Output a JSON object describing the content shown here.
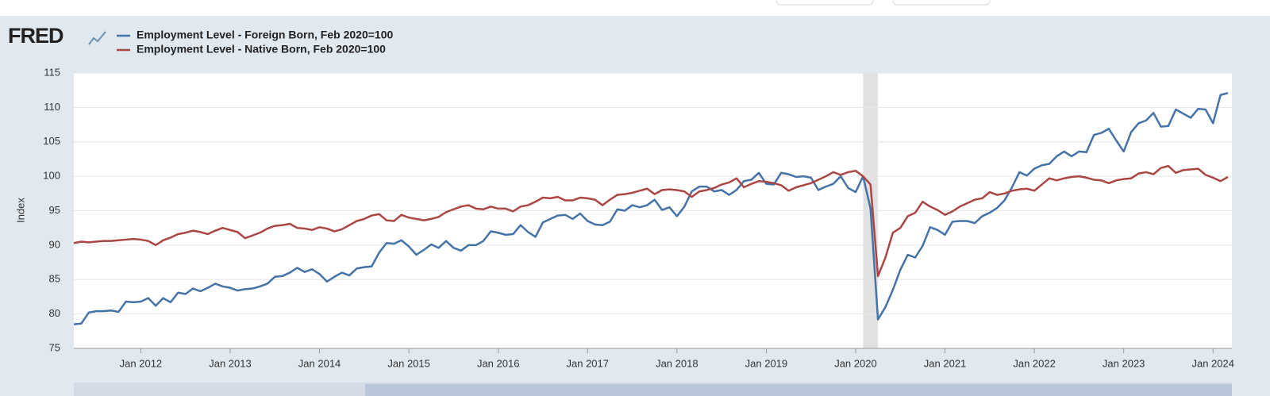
{
  "chart_data": {
    "type": "line",
    "logo": "FRED",
    "y_label": "Index",
    "x": [
      "2011-04",
      "2011-05",
      "2011-06",
      "2011-07",
      "2011-08",
      "2011-09",
      "2011-10",
      "2011-11",
      "2011-12",
      "2012-01",
      "2012-02",
      "2012-03",
      "2012-04",
      "2012-05",
      "2012-06",
      "2012-07",
      "2012-08",
      "2012-09",
      "2012-10",
      "2012-11",
      "2012-12",
      "2013-01",
      "2013-02",
      "2013-03",
      "2013-04",
      "2013-05",
      "2013-06",
      "2013-07",
      "2013-08",
      "2013-09",
      "2013-10",
      "2013-11",
      "2013-12",
      "2014-01",
      "2014-02",
      "2014-03",
      "2014-04",
      "2014-05",
      "2014-06",
      "2014-07",
      "2014-08",
      "2014-09",
      "2014-10",
      "2014-11",
      "2014-12",
      "2015-01",
      "2015-02",
      "2015-03",
      "2015-04",
      "2015-05",
      "2015-06",
      "2015-07",
      "2015-08",
      "2015-09",
      "2015-10",
      "2015-11",
      "2015-12",
      "2016-01",
      "2016-02",
      "2016-03",
      "2016-04",
      "2016-05",
      "2016-06",
      "2016-07",
      "2016-08",
      "2016-09",
      "2016-10",
      "2016-11",
      "2016-12",
      "2017-01",
      "2017-02",
      "2017-03",
      "2017-04",
      "2017-05",
      "2017-06",
      "2017-07",
      "2017-08",
      "2017-09",
      "2017-10",
      "2017-11",
      "2017-12",
      "2018-01",
      "2018-02",
      "2018-03",
      "2018-04",
      "2018-05",
      "2018-06",
      "2018-07",
      "2018-08",
      "2018-09",
      "2018-10",
      "2018-11",
      "2018-12",
      "2019-01",
      "2019-02",
      "2019-03",
      "2019-04",
      "2019-05",
      "2019-06",
      "2019-07",
      "2019-08",
      "2019-09",
      "2019-10",
      "2019-11",
      "2019-12",
      "2020-01",
      "2020-02",
      "2020-03",
      "2020-04",
      "2020-05",
      "2020-06",
      "2020-07",
      "2020-08",
      "2020-09",
      "2020-10",
      "2020-11",
      "2020-12",
      "2021-01",
      "2021-02",
      "2021-03",
      "2021-04",
      "2021-05",
      "2021-06",
      "2021-07",
      "2021-08",
      "2021-09",
      "2021-10",
      "2021-11",
      "2021-12",
      "2022-01",
      "2022-02",
      "2022-03",
      "2022-04",
      "2022-05",
      "2022-06",
      "2022-07",
      "2022-08",
      "2022-09",
      "2022-10",
      "2022-11",
      "2022-12",
      "2023-01",
      "2023-02",
      "2023-03",
      "2023-04",
      "2023-05",
      "2023-06",
      "2023-07",
      "2023-08",
      "2023-09",
      "2023-10",
      "2023-11",
      "2023-12",
      "2024-01",
      "2024-02",
      "2024-03"
    ],
    "series": [
      {
        "name": "Employment Level - Foreign Born, Feb 2020=100",
        "color": "#4572a7",
        "values": [
          78.5,
          78.6,
          80.2,
          80.4,
          80.4,
          80.5,
          80.3,
          81.8,
          81.7,
          81.8,
          82.3,
          81.2,
          82.3,
          81.7,
          83.1,
          82.9,
          83.7,
          83.3,
          83.8,
          84.4,
          84.0,
          83.8,
          83.4,
          83.6,
          83.7,
          84.0,
          84.4,
          85.4,
          85.5,
          86.0,
          86.7,
          86.1,
          86.5,
          85.8,
          84.7,
          85.4,
          86.0,
          85.6,
          86.6,
          86.8,
          86.9,
          88.9,
          90.3,
          90.2,
          90.7,
          89.8,
          88.6,
          89.3,
          90.1,
          89.6,
          90.6,
          89.6,
          89.2,
          90.0,
          90.0,
          90.6,
          92.0,
          91.8,
          91.5,
          91.6,
          92.9,
          91.9,
          91.2,
          93.3,
          93.8,
          94.3,
          94.4,
          93.8,
          94.6,
          93.5,
          93.0,
          92.9,
          93.4,
          95.2,
          95.0,
          95.8,
          95.5,
          95.8,
          96.6,
          95.1,
          95.5,
          94.2,
          95.6,
          97.8,
          98.5,
          98.5,
          97.8,
          98.0,
          97.3,
          98.0,
          99.3,
          99.5,
          100.5,
          98.9,
          98.8,
          100.5,
          100.3,
          99.9,
          100.0,
          99.8,
          98.0,
          98.5,
          98.9,
          100.0,
          98.3,
          97.7,
          100.0,
          95.3,
          79.2,
          81.0,
          83.5,
          86.4,
          88.6,
          88.2,
          89.9,
          92.6,
          92.2,
          91.5,
          93.4,
          93.5,
          93.5,
          93.2,
          94.2,
          94.7,
          95.4,
          96.5,
          98.4,
          100.6,
          100.1,
          101.1,
          101.6,
          101.8,
          102.9,
          103.6,
          102.9,
          103.6,
          103.5,
          106.0,
          106.3,
          106.9,
          105.2,
          103.6,
          106.4,
          107.7,
          108.1,
          109.2,
          107.2,
          107.3,
          109.7,
          109.1,
          108.5,
          109.8,
          109.7,
          107.7,
          111.8,
          112.1
        ]
      },
      {
        "name": "Employment Level - Native Born, Feb 2020=100",
        "color": "#aa4643",
        "values": [
          90.3,
          90.5,
          90.4,
          90.5,
          90.6,
          90.6,
          90.7,
          90.8,
          90.9,
          90.8,
          90.6,
          90.0,
          90.7,
          91.1,
          91.6,
          91.8,
          92.1,
          91.9,
          91.6,
          92.1,
          92.5,
          92.2,
          91.9,
          91.0,
          91.4,
          91.8,
          92.4,
          92.8,
          92.9,
          93.1,
          92.5,
          92.4,
          92.2,
          92.6,
          92.4,
          92.0,
          92.3,
          92.9,
          93.5,
          93.8,
          94.3,
          94.5,
          93.6,
          93.5,
          94.4,
          94.0,
          93.8,
          93.6,
          93.8,
          94.1,
          94.8,
          95.2,
          95.6,
          95.8,
          95.3,
          95.2,
          95.6,
          95.3,
          95.3,
          94.9,
          95.6,
          95.8,
          96.3,
          96.9,
          96.8,
          97.0,
          96.5,
          96.5,
          96.9,
          96.8,
          96.6,
          95.8,
          96.6,
          97.3,
          97.4,
          97.6,
          97.9,
          98.2,
          97.4,
          98.0,
          98.1,
          98.0,
          97.8,
          97.0,
          97.8,
          98.0,
          98.3,
          98.8,
          99.1,
          99.7,
          98.4,
          98.9,
          99.3,
          99.2,
          99.0,
          98.7,
          97.9,
          98.4,
          98.7,
          99.0,
          99.5,
          100.0,
          100.6,
          100.2,
          100.6,
          100.8,
          100.0,
          98.8,
          85.5,
          88.2,
          91.8,
          92.5,
          94.2,
          94.7,
          96.3,
          95.6,
          95.1,
          94.4,
          94.9,
          95.6,
          96.1,
          96.6,
          96.8,
          97.7,
          97.3,
          97.5,
          97.9,
          98.1,
          98.2,
          97.9,
          98.8,
          99.7,
          99.4,
          99.7,
          99.9,
          100.0,
          99.8,
          99.5,
          99.4,
          99.0,
          99.4,
          99.6,
          99.7,
          100.4,
          100.6,
          100.3,
          101.2,
          101.5,
          100.5,
          100.9,
          101.0,
          101.1,
          100.2,
          99.8,
          99.3,
          99.9
        ]
      }
    ],
    "xlim": [
      "2011-04",
      "2024-03"
    ],
    "xticks": [
      {
        "value": "2012-01",
        "label": "Jan 2012"
      },
      {
        "value": "2013-01",
        "label": "Jan 2013"
      },
      {
        "value": "2014-01",
        "label": "Jan 2014"
      },
      {
        "value": "2015-01",
        "label": "Jan 2015"
      },
      {
        "value": "2016-01",
        "label": "Jan 2016"
      },
      {
        "value": "2017-01",
        "label": "Jan 2017"
      },
      {
        "value": "2018-01",
        "label": "Jan 2018"
      },
      {
        "value": "2019-01",
        "label": "Jan 2019"
      },
      {
        "value": "2020-01",
        "label": "Jan 2020"
      },
      {
        "value": "2021-01",
        "label": "Jan 2021"
      },
      {
        "value": "2022-01",
        "label": "Jan 2022"
      },
      {
        "value": "2023-01",
        "label": "Jan 2023"
      },
      {
        "value": "2024-01",
        "label": "Jan 2024"
      }
    ],
    "ylim": [
      75,
      115
    ],
    "yticks": [
      75,
      80,
      85,
      90,
      95,
      100,
      105,
      110,
      115
    ],
    "grid": true,
    "recession": [
      "2020-02",
      "2020-04"
    ],
    "recession_color": "#e1e1e1"
  }
}
